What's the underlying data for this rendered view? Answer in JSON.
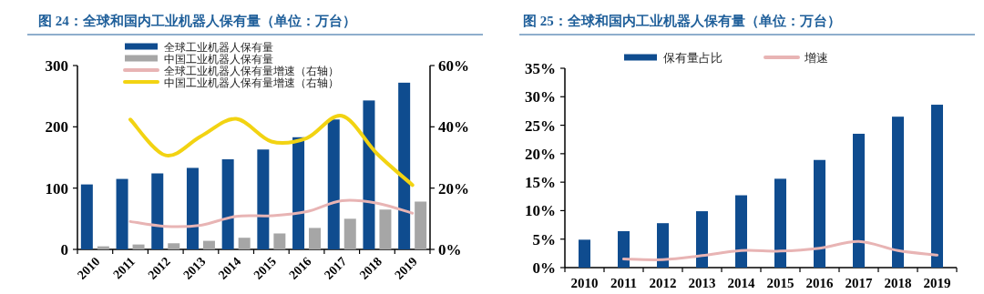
{
  "chart_data": [
    {
      "type": "bar",
      "title": "图 24：全球和国内工业机器人保有量（单位：万台）",
      "categories": [
        "2010",
        "2011",
        "2012",
        "2013",
        "2014",
        "2015",
        "2016",
        "2017",
        "2018",
        "2019"
      ],
      "series": [
        {
          "name": "全球工业机器人保有量",
          "color": "#0f4c8f",
          "values": [
            106,
            115,
            124,
            133,
            147,
            163,
            183,
            212,
            243,
            272
          ]
        },
        {
          "name": "中国工业机器人保有量",
          "color": "#a6a6a6",
          "values": [
            5,
            8,
            10,
            14,
            19,
            26,
            35,
            50,
            65,
            78
          ]
        },
        {
          "name": "全球工业机器人保有量增速（右轴）",
          "type": "line",
          "axis": "y2",
          "color": "#e8b4b4",
          "values": [
            null,
            9.1,
            7.5,
            7.9,
            10.8,
            11,
            12.3,
            15.9,
            15.1,
            11.8
          ]
        },
        {
          "name": "中国工业机器人保有量增速（右轴）",
          "type": "line",
          "axis": "y2",
          "color": "#f2d312",
          "values": [
            null,
            42.4,
            30.7,
            36.9,
            42.6,
            35.2,
            36.3,
            43.6,
            31.2,
            21
          ]
        }
      ],
      "ylim": [
        0,
        300
      ],
      "yticks": [
        0,
        100,
        200,
        300
      ],
      "y2lim": [
        0,
        60
      ],
      "y2ticks": [
        {
          "value": 0,
          "label": "0%"
        },
        {
          "value": 20,
          "label": "20%"
        },
        {
          "value": 40,
          "label": "40%"
        },
        {
          "value": 60,
          "label": "60%"
        }
      ],
      "legend": "top",
      "grid": false,
      "marker": "none"
    },
    {
      "type": "bar",
      "title": "图 25：全球和国内工业机器人保有量（单位：万台）",
      "categories": [
        "2010",
        "2011",
        "2012",
        "2013",
        "2014",
        "2015",
        "2016",
        "2017",
        "2018",
        "2019"
      ],
      "series": [
        {
          "name": "保有量占比",
          "color": "#0f4c8f",
          "values": [
            4.9,
            6.4,
            7.8,
            9.9,
            12.7,
            15.6,
            18.9,
            23.5,
            26.5,
            28.6
          ]
        },
        {
          "name": "增速",
          "type": "line",
          "color": "#e8b4b4",
          "values": [
            null,
            1.5,
            1.4,
            2.1,
            3.0,
            2.9,
            3.4,
            4.6,
            3.0,
            2.2
          ]
        }
      ],
      "ylim": [
        0,
        35
      ],
      "yticks": [
        {
          "value": 0,
          "label": "0%"
        },
        {
          "value": 5,
          "label": "5%"
        },
        {
          "value": 10,
          "label": "10%"
        },
        {
          "value": 15,
          "label": "15%"
        },
        {
          "value": 20,
          "label": "20%"
        },
        {
          "value": 25,
          "label": "25%"
        },
        {
          "value": 30,
          "label": "30%"
        },
        {
          "value": 35,
          "label": "35%"
        }
      ],
      "legend": "top",
      "grid": false,
      "marker": "none"
    }
  ]
}
